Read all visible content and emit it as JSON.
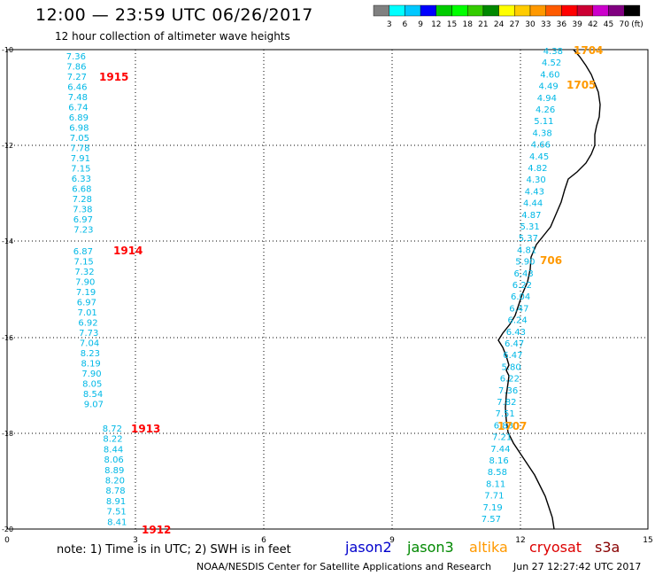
{
  "header": {
    "title": "12:00 — 23:59 UTC 06/26/2017",
    "subtitle": "12 hour collection of altimeter wave heights"
  },
  "legend": {
    "colors": [
      "#808080",
      "#00ffff",
      "#00c8ff",
      "#0000ff",
      "#00cc00",
      "#00ff00",
      "#33cc00",
      "#008800",
      "#ffff00",
      "#ffcc00",
      "#ff9900",
      "#ff5a00",
      "#ff0000",
      "#cc0033",
      "#cc00cc",
      "#800080",
      "#000000"
    ],
    "labels": [
      "3",
      "6",
      "9",
      "12",
      "15",
      "18",
      "21",
      "24",
      "27",
      "30",
      "33",
      "36",
      "39",
      "42",
      "45",
      "70"
    ],
    "unit": "(ft)"
  },
  "axes": {
    "x_ticks": [
      "0",
      "3",
      "6",
      "9",
      "12",
      "15"
    ],
    "y_ticks": [
      "-10",
      "-12",
      "-14",
      "-16",
      "-18",
      "-20"
    ]
  },
  "tracks": [
    {
      "pass": "1915",
      "pass_color": "#ff0000",
      "values_color": "#00b8e6",
      "values": [
        "7.36",
        "7.86",
        "7.27",
        "6.46",
        "7.48",
        "6.74",
        "6.89",
        "6.98",
        "7.05",
        "7.78",
        "7.91",
        "7.15",
        "6.33",
        "6.68",
        "7.28",
        "7.38",
        "6.97",
        "7.23"
      ]
    },
    {
      "pass": "1914",
      "pass_color": "#ff0000",
      "values_color": "#00b8e6",
      "values": [
        "6.87",
        "7.15",
        "7.32",
        "7.90",
        "7.19",
        "6.97",
        "7.01",
        "6.92",
        "7.73",
        "7.04",
        "8.23",
        "8.19",
        "7.90",
        "8.05",
        "8.54",
        "9.07"
      ]
    },
    {
      "pass": "1913",
      "pass_color": "#ff0000",
      "values_color": "#00b8e6",
      "values": [
        "8.72",
        "8.22",
        "8.44",
        "8.06",
        "8.89",
        "8.20",
        "8.78",
        "8.91",
        "7.51",
        "8.41"
      ]
    },
    {
      "pass": "1912",
      "pass_color": "#ff0000"
    },
    {
      "pass": "1704",
      "pass_color": "#ff9900",
      "values_color": "#00b8e6",
      "values": [
        "4.38",
        "4.52",
        "4.60",
        "4.49",
        "4.94",
        "4.26",
        "5.11",
        "4.38",
        "4.66",
        "4.45",
        "4.82",
        "4.30",
        "4.43",
        "4.44",
        "4.87",
        "5.31",
        "5.37",
        "4.81",
        "5.90",
        "6.43",
        "6.22",
        "6.04",
        "6.47",
        "6.24",
        "6.43",
        "6.47",
        "6.47",
        "5.80",
        "6.22",
        "7.36",
        "7.82",
        "7.51",
        "6.83",
        "7.21",
        "7.44",
        "8.16",
        "8.58",
        "8.11",
        "7.71",
        "7.19",
        "7.57"
      ]
    },
    {
      "pass": "1705",
      "pass_color": "#ff9900"
    },
    {
      "pass": "706",
      "pass_color": "#ff9900"
    },
    {
      "pass": "1707",
      "pass_color": "#ff9900"
    }
  ],
  "satellites": [
    {
      "name": "jason2",
      "color": "#0000cc"
    },
    {
      "name": "jason3",
      "color": "#008800"
    },
    {
      "name": "altika",
      "color": "#ff9900"
    },
    {
      "name": "cryosat",
      "color": "#dd0000"
    },
    {
      "name": "s3a",
      "color": "#880000"
    }
  ],
  "footer": {
    "note": "note: 1) Time is in UTC; 2) SWH is in feet",
    "credit": "NOAA/NESDIS Center for Satellite Applications and Research",
    "timestamp": "Jun 27 12:27:42 UTC 2017"
  }
}
